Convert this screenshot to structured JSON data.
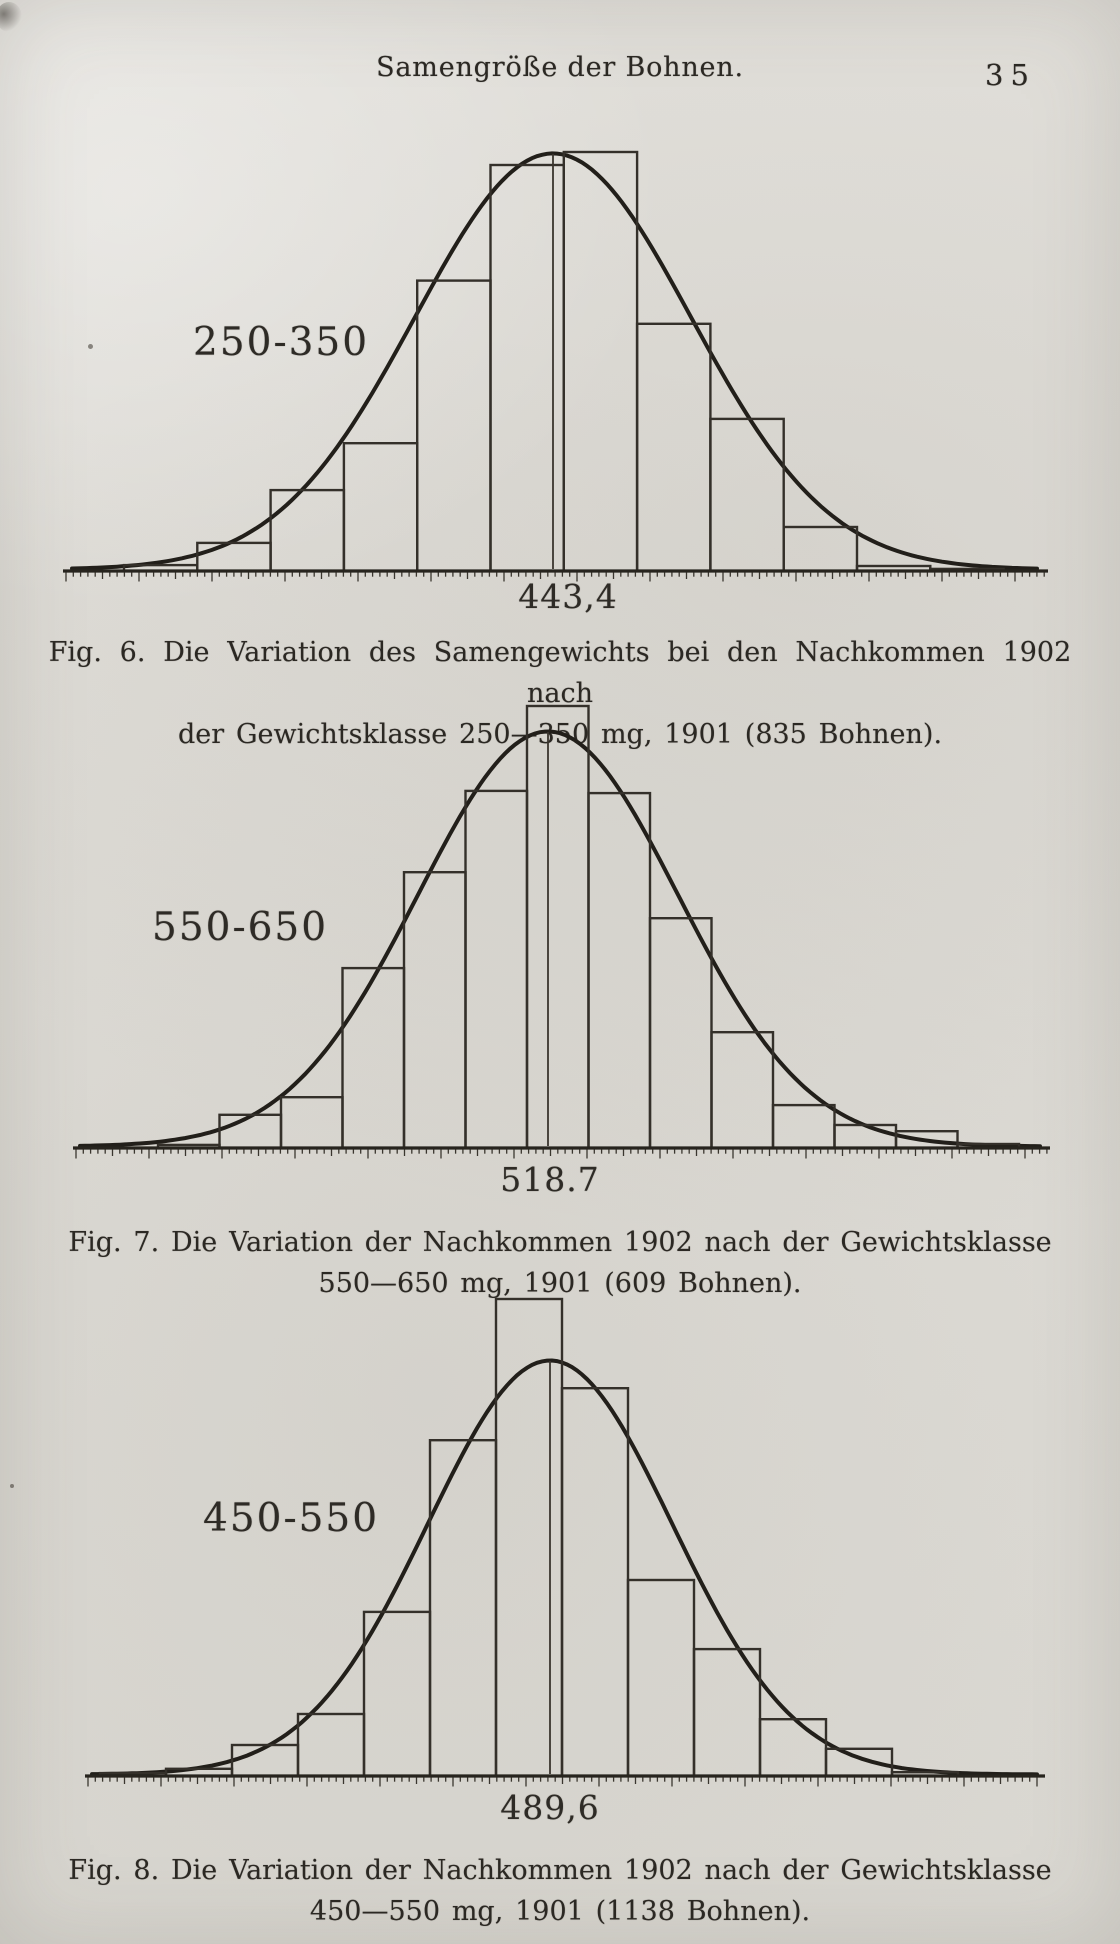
{
  "page": {
    "header_title": "Samengröße der Bohnen.",
    "page_number": "35"
  },
  "figures": [
    {
      "figure_label": "Fig. 6.",
      "class_label": "250-350",
      "mean_label": "443,4",
      "caption_lines": [
        "Fig. 6. Die Variation des Samengewichts bei den Nachkommen 1902 nach",
        "der Gewichtsklasse 250—350 mg, 1901 (835 Bohnen)."
      ]
    },
    {
      "figure_label": "Fig. 7.",
      "class_label": "550-650",
      "mean_label": "518.7",
      "caption_lines": [
        "Fig. 7. Die Variation der Nachkommen 1902 nach der Gewichtsklasse",
        "550—650 mg, 1901 (609 Bohnen)."
      ]
    },
    {
      "figure_label": "Fig. 8.",
      "class_label": "450-550",
      "mean_label": "489,6",
      "caption_lines": [
        "Fig. 8. Die Variation der Nachkommen 1902 nach der Gewichtsklasse",
        "450—550 mg, 1901 (1138 Bohnen)."
      ]
    }
  ],
  "chart_data": [
    {
      "type": "bar",
      "subtype": "histogram with fitted normal curve and vertical mean line",
      "figure": "Fig. 6",
      "parent_weight_class_mg": "250—350",
      "parent_year": "1901",
      "offspring_year": "1902",
      "n_beans": 835,
      "mean_label": "443,4",
      "mean_value": 443.4,
      "bar_count": 12,
      "values_relative": [
        0.014,
        0.067,
        0.193,
        0.305,
        0.693,
        0.969,
        1.0,
        0.59,
        0.363,
        0.105,
        0.012,
        0.005
      ],
      "curve_peak_relative": 0.993,
      "axis_tick_labels_printed": false,
      "ylabel": "frequency (no scale printed)",
      "xlabel": "seed weight (ruler axis, no numbers printed)"
    },
    {
      "type": "bar",
      "subtype": "histogram with fitted normal curve and vertical mean line",
      "figure": "Fig. 7",
      "parent_weight_class_mg": "550—650",
      "parent_year": "1901",
      "offspring_year": "1902",
      "n_beans": 609,
      "mean_label": "518.7",
      "mean_value": 518.7,
      "bar_count": 14,
      "values_relative": [
        0.007,
        0.075,
        0.115,
        0.407,
        0.624,
        0.808,
        1.0,
        0.803,
        0.52,
        0.262,
        0.097,
        0.052,
        0.038,
        0.009
      ],
      "curve_peak_relative": 0.939,
      "axis_tick_labels_printed": false,
      "ylabel": "frequency (no scale printed)",
      "xlabel": "seed weight (ruler axis, no numbers printed)"
    },
    {
      "type": "bar",
      "subtype": "histogram with fitted normal curve and vertical mean line",
      "figure": "Fig. 8",
      "parent_weight_class_mg": "450—550",
      "parent_year": "1901",
      "offspring_year": "1902",
      "n_beans": 1138,
      "mean_label": "489,6",
      "mean_value": 489.6,
      "bar_count": 13,
      "values_relative": [
        0.006,
        0.015,
        0.065,
        0.13,
        0.344,
        0.704,
        1.0,
        0.813,
        0.411,
        0.266,
        0.119,
        0.057,
        0.008
      ],
      "curve_peak_relative": 0.868,
      "axis_tick_labels_printed": false,
      "ylabel": "frequency (no scale printed)",
      "xlabel": "seed weight (ruler axis, no numbers printed)"
    }
  ]
}
